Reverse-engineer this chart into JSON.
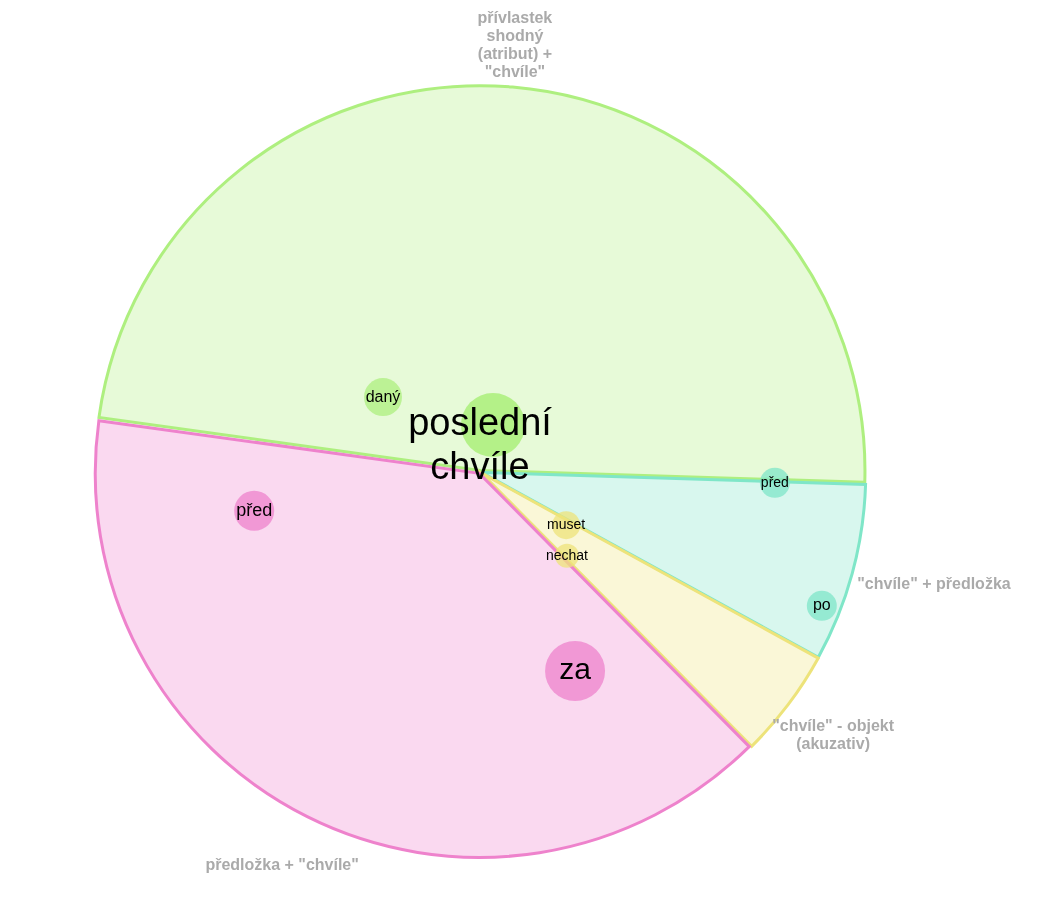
{
  "chart_data": {
    "type": "pie",
    "title": "poslední chvíle",
    "categories": [
      "přívlastek shodný (atribut) + \"chvíle\"",
      "\"chvíle\" + předložka",
      "\"chvíle\" - objekt (akuzativ)",
      "předložka + \"chvíle\""
    ],
    "values": [
      48.3,
      7.5,
      4.6,
      39.6
    ],
    "colors": [
      "#aeef7f",
      "#7fe6c8",
      "#ede37a",
      "#ee82cc"
    ],
    "annotations": [
      "daný",
      "před",
      "po",
      "muset",
      "nechat",
      "před",
      "za"
    ],
    "legend": false
  }
}
